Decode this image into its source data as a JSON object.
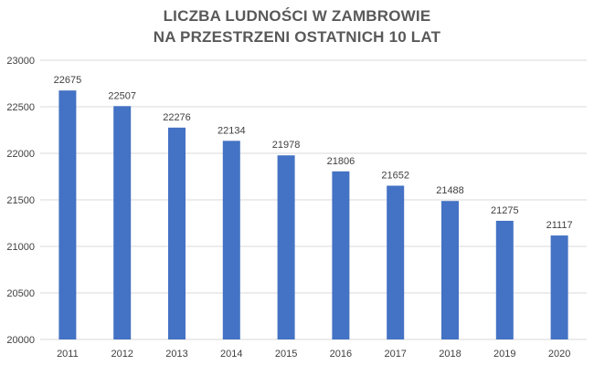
{
  "chart_data": {
    "type": "bar",
    "title_lines": [
      "LICZBA LUDNOŚCI W ZAMBROWIE",
      "NA PRZESTRZENI OSTATNICH 10 LAT"
    ],
    "categories": [
      "2011",
      "2012",
      "2013",
      "2014",
      "2015",
      "2016",
      "2017",
      "2018",
      "2019",
      "2020"
    ],
    "values": [
      22675,
      22507,
      22276,
      22134,
      21978,
      21806,
      21652,
      21488,
      21275,
      21117
    ],
    "data_labels": [
      "22675",
      "22507",
      "22276",
      "22134",
      "21978",
      "21806",
      "21652",
      "21488",
      "21275",
      "21117"
    ],
    "ylim": [
      20000,
      23000
    ],
    "y_ticks": [
      20000,
      20500,
      21000,
      21500,
      22000,
      22500,
      23000
    ],
    "y_tick_labels": [
      "20000",
      "20500",
      "21000",
      "21500",
      "22000",
      "22500",
      "23000"
    ],
    "xlabel": "",
    "ylabel": "",
    "grid": true,
    "legend": "none",
    "bar_color": "#4472c4",
    "grid_color": "#d9d9d9",
    "text_color": "#404040"
  }
}
